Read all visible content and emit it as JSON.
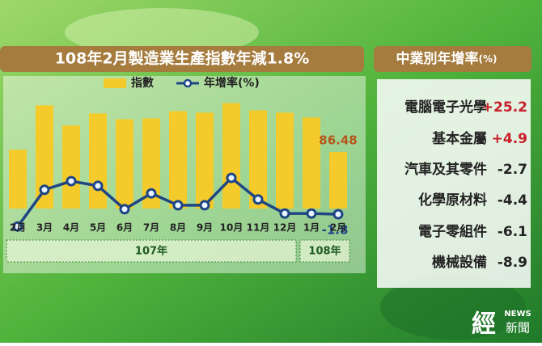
{
  "chart_data": {
    "type": "bar",
    "title": "108年2月製造業生產指數年減1.8%",
    "categories": [
      "2月",
      "3月",
      "4月",
      "5月",
      "6月",
      "7月",
      "8月",
      "9月",
      "10月",
      "11月",
      "12月",
      "1月",
      "2月"
    ],
    "x_groups": [
      {
        "label": "107年",
        "count": 11
      },
      {
        "label": "108年",
        "count": 2
      }
    ],
    "series": [
      {
        "name": "指數",
        "color": "#f4cb2a",
        "values": [
          88.0,
          116.6,
          103.6,
          111.4,
          107.7,
          108.2,
          112.9,
          111.9,
          118.1,
          113.4,
          111.9,
          108.8,
          86.48
        ],
        "value_labels": [
          null,
          null,
          null,
          null,
          null,
          null,
          null,
          null,
          null,
          null,
          null,
          null,
          "86.48"
        ],
        "label_color": "#b5561c"
      },
      {
        "name": "年增率(%)",
        "type": "line",
        "axis": "y2",
        "color": "#1f4585",
        "values": [
          -5.2,
          5.0,
          7.4,
          6.1,
          -0.4,
          4.0,
          0.7,
          0.7,
          8.3,
          2.3,
          -1.6,
          -1.6,
          -1.8
        ],
        "value_labels": [
          null,
          null,
          null,
          null,
          null,
          null,
          null,
          null,
          null,
          null,
          null,
          null,
          "-1.8"
        ],
        "label_color": "#1f4585"
      }
    ],
    "ylim": [
      50,
      122
    ],
    "y2lim": [
      -10,
      20
    ],
    "grid": false
  },
  "industry_table": {
    "title": "中業別年增率",
    "unit": "(%)",
    "rows": [
      {
        "name": "電腦電子光學",
        "value": "+25.2"
      },
      {
        "name": "基本金屬",
        "value": "+4.9"
      },
      {
        "name": "汽車及其零件",
        "value": "-2.7"
      },
      {
        "name": "化學原材料",
        "value": "-4.4"
      },
      {
        "name": "電子零組件",
        "value": "-6.1"
      },
      {
        "name": "機械設備",
        "value": "-8.9"
      }
    ]
  },
  "logo": {
    "mark": "經",
    "tag": "NEWS",
    "name": "新聞"
  }
}
